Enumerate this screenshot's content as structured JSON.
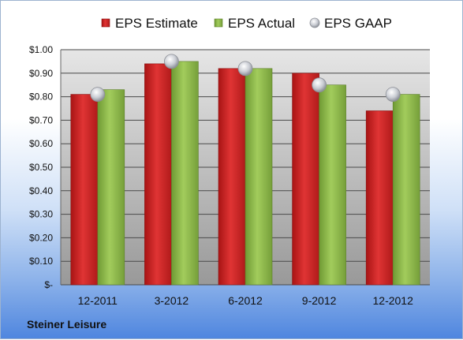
{
  "footer": {
    "company": "Steiner Leisure"
  },
  "colors": {
    "estimate": "#d42a2a",
    "actual": "#8cb84a",
    "gaap": "#c8ccd4",
    "plot_top": "#e4e4e4",
    "plot_bottom": "#9a9a9a"
  },
  "chart_data": {
    "type": "bar",
    "categories": [
      "12-2011",
      "3-2012",
      "6-2012",
      "9-2012",
      "12-2012"
    ],
    "series": [
      {
        "name": "EPS Estimate",
        "values": [
          0.81,
          0.94,
          0.92,
          0.9,
          0.74
        ]
      },
      {
        "name": "EPS Actual",
        "values": [
          0.83,
          0.95,
          0.92,
          0.85,
          0.81
        ]
      },
      {
        "name": "EPS GAAP",
        "kind": "marker",
        "values": [
          0.81,
          0.95,
          0.92,
          0.85,
          0.81
        ]
      }
    ],
    "yticks": [
      "$-",
      "$0.10",
      "$0.20",
      "$0.30",
      "$0.40",
      "$0.50",
      "$0.60",
      "$0.70",
      "$0.80",
      "$0.90",
      "$1.00"
    ],
    "ylim": [
      0,
      1.0
    ],
    "grid": true,
    "legend": "top"
  }
}
